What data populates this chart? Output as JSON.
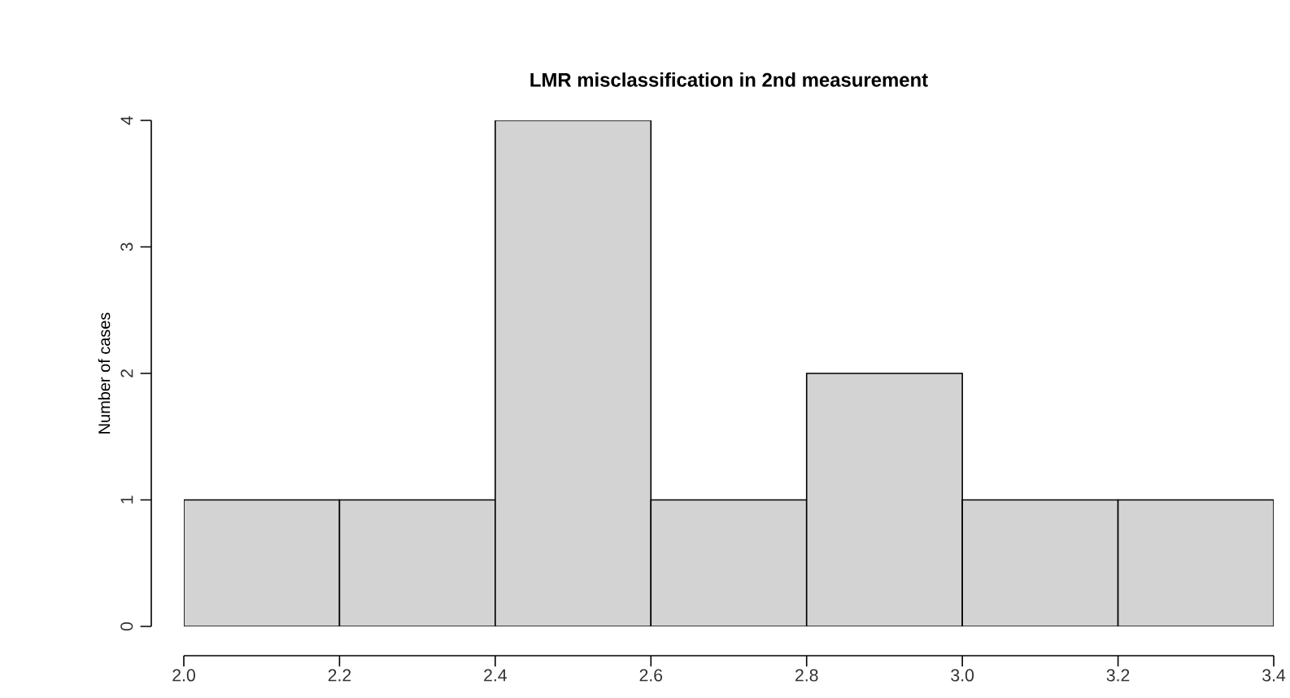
{
  "chart_data": {
    "type": "histogram",
    "title": "LMR misclassification in 2nd measurement",
    "ylabel": "Number of cases",
    "bins": [
      2.0,
      2.2,
      2.4,
      2.6,
      2.8,
      3.0,
      3.2,
      3.4
    ],
    "values": [
      1,
      1,
      4,
      1,
      2,
      1,
      1
    ],
    "color": "#d3d3d3",
    "xlim": [
      2.0,
      3.4
    ],
    "xticks": [
      {
        "value": 2.0,
        "label": "2.0"
      },
      {
        "value": 2.2,
        "label": "2.2"
      },
      {
        "value": 2.4,
        "label": "2.4"
      },
      {
        "value": 2.6,
        "label": "2.6"
      },
      {
        "value": 2.8,
        "label": "2.8"
      },
      {
        "value": 3.0,
        "label": "3.0"
      },
      {
        "value": 3.2,
        "label": "3.2"
      },
      {
        "value": 3.4,
        "label": "3.4"
      }
    ],
    "ylim": [
      0,
      4
    ],
    "yticks": [
      0,
      1,
      2,
      3,
      4
    ],
    "grid": false
  }
}
